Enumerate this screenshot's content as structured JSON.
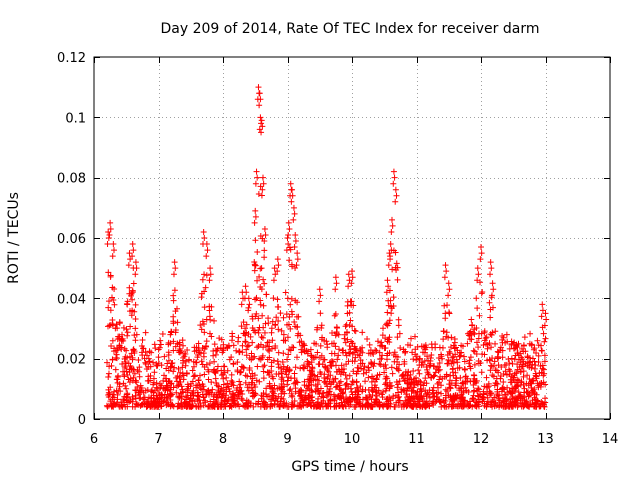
{
  "chart_data": {
    "type": "scatter",
    "title": "Day 209 of 2014, Rate Of TEC Index for receiver darm",
    "xlabel": "GPS time / hours",
    "ylabel": "ROTI / TECUs",
    "xlim": [
      6,
      14
    ],
    "ylim": [
      0,
      0.12
    ],
    "xticks": [
      6,
      7,
      8,
      9,
      10,
      11,
      12,
      13,
      14
    ],
    "yticks": [
      0,
      0.02,
      0.04,
      0.06,
      0.08,
      0.1,
      0.12
    ],
    "xtick_labels": [
      "6",
      "7",
      "8",
      "9",
      "10",
      "11",
      "12",
      "13",
      "14"
    ],
    "ytick_labels": [
      "0",
      "0.02",
      "0.04",
      "0.06",
      "0.08",
      "0.1",
      "0.12"
    ],
    "grid": true,
    "marker": "plus",
    "series": [
      {
        "name": "ROTI",
        "color": "#ff0000",
        "note": "dense band of ~0.005-0.03 TECU values from 6.2h to 13.0h; peaks listed below",
        "x": [
          6.22,
          6.25,
          6.3,
          6.55,
          6.6,
          6.65,
          7.25,
          7.7,
          7.75,
          7.8,
          8.3,
          8.35,
          8.4,
          8.5,
          8.52,
          8.55,
          8.57,
          8.58,
          8.6,
          8.62,
          8.65,
          8.8,
          8.85,
          9.0,
          9.02,
          9.05,
          9.07,
          9.1,
          9.12,
          9.15,
          9.5,
          9.75,
          9.95,
          10.0,
          10.55,
          10.58,
          10.6,
          10.62,
          10.65,
          10.68,
          11.45,
          11.5,
          11.85,
          11.95,
          12.0,
          12.15,
          12.18,
          12.95,
          13.0
        ],
        "y": [
          0.062,
          0.065,
          0.058,
          0.055,
          0.058,
          0.052,
          0.052,
          0.062,
          0.058,
          0.05,
          0.042,
          0.044,
          0.04,
          0.069,
          0.082,
          0.11,
          0.108,
          0.1,
          0.099,
          0.08,
          0.063,
          0.05,
          0.053,
          0.06,
          0.065,
          0.078,
          0.076,
          0.07,
          0.061,
          0.055,
          0.043,
          0.047,
          0.048,
          0.049,
          0.046,
          0.055,
          0.058,
          0.066,
          0.082,
          0.076,
          0.051,
          0.045,
          0.033,
          0.05,
          0.057,
          0.052,
          0.045,
          0.038,
          0.035
        ]
      }
    ]
  }
}
